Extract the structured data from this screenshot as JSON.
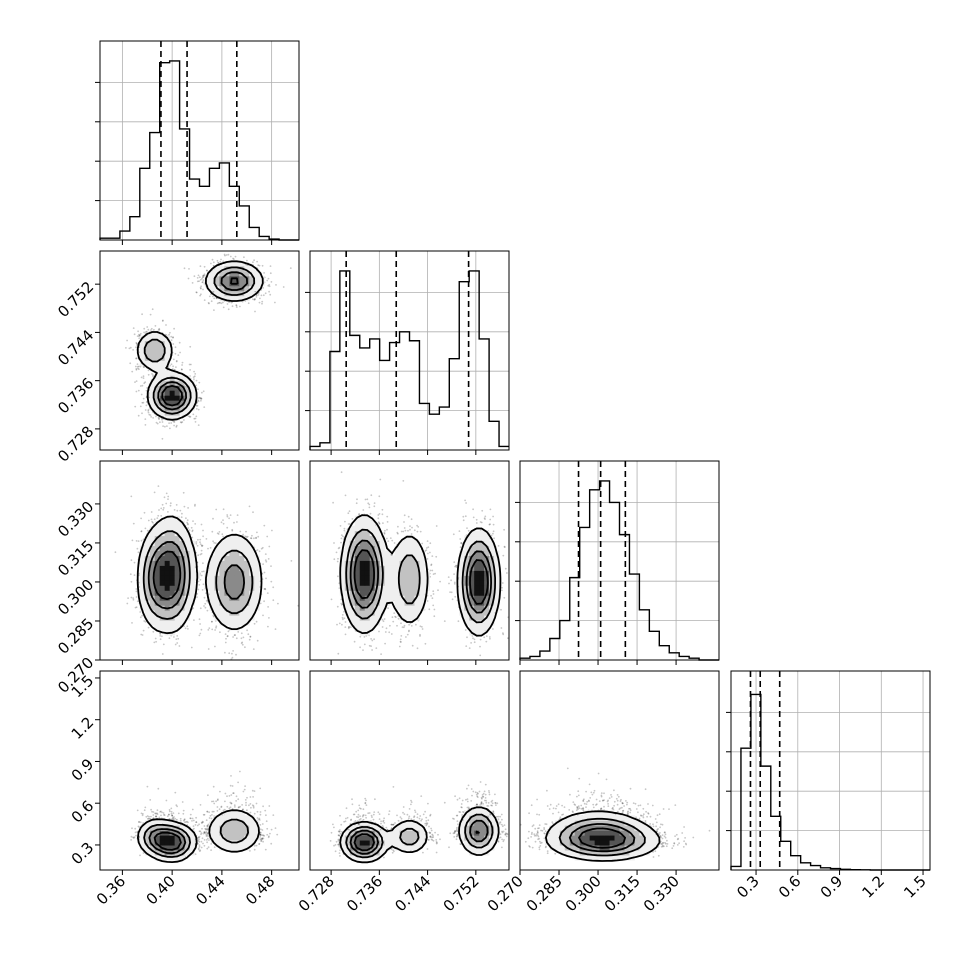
{
  "chart_data": {
    "type": "corner",
    "title": "",
    "grid": true,
    "parameters": [
      {
        "range": [
          0.342,
          0.502
        ],
        "ticks": [
          "0.36",
          "0.40",
          "0.44",
          "0.48"
        ],
        "tick_values": [
          0.36,
          0.4,
          0.44,
          0.48
        ],
        "quantiles": [
          0.391,
          0.412,
          0.452
        ]
      },
      {
        "range": [
          0.7245,
          0.7575
        ],
        "ticks": [
          "0.728",
          "0.736",
          "0.744",
          "0.752"
        ],
        "tick_values": [
          0.728,
          0.736,
          0.744,
          0.752
        ],
        "quantiles": [
          0.7305,
          0.7388,
          0.7508
        ]
      },
      {
        "range": [
          0.27,
          0.3465
        ],
        "ticks": [
          "0.270",
          "0.285",
          "0.300",
          "0.315",
          "0.330"
        ],
        "tick_values": [
          0.27,
          0.285,
          0.3,
          0.315,
          0.33
        ],
        "quantiles": [
          0.2925,
          0.301,
          0.3105
        ]
      },
      {
        "range": [
          0.12,
          1.55
        ],
        "ticks": [
          "0.3",
          "0.6",
          "0.9",
          "1.2",
          "1.5"
        ],
        "tick_values": [
          0.3,
          0.6,
          0.9,
          1.2,
          1.5
        ],
        "quantiles": [
          0.26,
          0.33,
          0.47
        ]
      }
    ],
    "histograms": [
      {
        "edges_range": [
          0.342,
          0.502
        ],
        "counts": [
          0.01,
          0.01,
          0.05,
          0.13,
          0.4,
          0.6,
          0.99,
          1.0,
          0.62,
          0.34,
          0.3,
          0.4,
          0.43,
          0.3,
          0.19,
          0.07,
          0.02,
          0.005,
          0,
          0
        ]
      },
      {
        "edges_range": [
          0.7245,
          0.7575
        ],
        "counts": [
          0.02,
          0.04,
          0.55,
          1.0,
          0.64,
          0.57,
          0.62,
          0.5,
          0.6,
          0.66,
          0.61,
          0.26,
          0.2,
          0.24,
          0.51,
          0.94,
          1.0,
          0.62,
          0.16,
          0.02
        ]
      },
      {
        "edges_range": [
          0.27,
          0.3465
        ],
        "counts": [
          0.01,
          0.02,
          0.05,
          0.12,
          0.22,
          0.46,
          0.74,
          0.95,
          1.0,
          0.88,
          0.7,
          0.48,
          0.28,
          0.16,
          0.08,
          0.04,
          0.02,
          0.01,
          0,
          0
        ]
      },
      {
        "edges_range": [
          0.12,
          1.55
        ],
        "counts": [
          0.02,
          0.68,
          0.98,
          0.58,
          0.3,
          0.16,
          0.08,
          0.04,
          0.025,
          0.012,
          0.008,
          0.004,
          0.002,
          0.001,
          0,
          0,
          0,
          0,
          0,
          0
        ]
      }
    ],
    "modes": [
      {
        "w": 0.45,
        "mu": [
          0.4,
          0.7335,
          0.303,
          0.32
        ],
        "sd": [
          0.0095,
          0.0019,
          0.011,
          0.07
        ]
      },
      {
        "w": 0.18,
        "mu": [
          0.386,
          0.741,
          0.301,
          0.36
        ],
        "sd": [
          0.008,
          0.0018,
          0.01,
          0.07
        ]
      },
      {
        "w": 0.37,
        "mu": [
          0.45,
          0.7525,
          0.3,
          0.4
        ],
        "sd": [
          0.012,
          0.0017,
          0.01,
          0.09
        ]
      }
    ]
  }
}
